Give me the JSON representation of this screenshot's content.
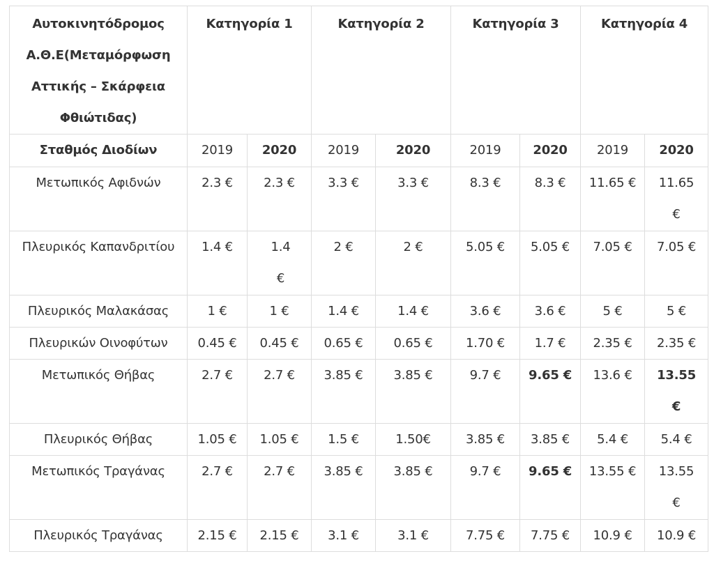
{
  "table": {
    "title": "Αυτοκινητόδρομος Α.Θ.Ε(Μεταμόρφωση Αττικής – Σκάρφεια Φθιώτιδας)",
    "categories": [
      "Κατηγορία 1",
      "Κατηγορία 2",
      "Κατηγορία 3",
      "Κατηγορία 4"
    ],
    "station_header": "Σταθμός Διοδίων",
    "years": [
      "2019",
      "2020",
      "2019",
      "2020",
      "2019",
      "2020",
      "2019",
      "2020"
    ],
    "rows": [
      {
        "station": "Μετωπικός Αφιδνών",
        "cells": [
          "2.3 €",
          "2.3 €",
          "3.3 €",
          "3.3 €",
          "8.3 €",
          "8.3 €",
          "11.65 €",
          "11.65 €"
        ]
      },
      {
        "station": "Πλευρικός Καπανδριτίου",
        "cells": [
          "1.4 €",
          "1.4 €",
          "2 €",
          "2 €",
          "5.05 €",
          "5.05 €",
          "7.05 €",
          "7.05 €"
        ]
      },
      {
        "station": "Πλευρικός Μαλακάσας",
        "cells": [
          "1 €",
          "1 €",
          "1.4 €",
          "1.4 €",
          "3.6 €",
          "3.6 €",
          "5 €",
          "5 €"
        ]
      },
      {
        "station": "Πλευρικών Οινοφύτων",
        "cells": [
          "0.45 €",
          "0.45 €",
          "0.65 €",
          "0.65 €",
          "1.70 €",
          "1.7 €",
          "2.35 €",
          "2.35 €"
        ]
      },
      {
        "station": "Μετωπικός Θήβας",
        "cells": [
          "2.7 €",
          "2.7 €",
          "3.85 €",
          "3.85 €",
          "9.7 €",
          "9.65 €",
          "13.6 €",
          "13.55 €"
        ]
      },
      {
        "station": "Πλευρικός Θήβας",
        "cells": [
          "1.05 €",
          "1.05 €",
          "1.5 €",
          "1.50€",
          "3.85 €",
          "3.85 €",
          "5.4 €",
          "5.4 €"
        ]
      },
      {
        "station": "Μετωπικός Τραγάνας",
        "cells": [
          "2.7 €",
          "2.7 €",
          "3.85 €",
          "3.85 €",
          "9.7 €",
          "9.65 €",
          "13.55 €",
          "13.55 €"
        ]
      },
      {
        "station": "Πλευρικός Τραγάνας",
        "cells": [
          "2.15 €",
          "2.15 €",
          "3.1 €",
          "3.1 €",
          "7.75 €",
          "7.75 €",
          "10.9 €",
          "10.9 €"
        ]
      }
    ]
  }
}
